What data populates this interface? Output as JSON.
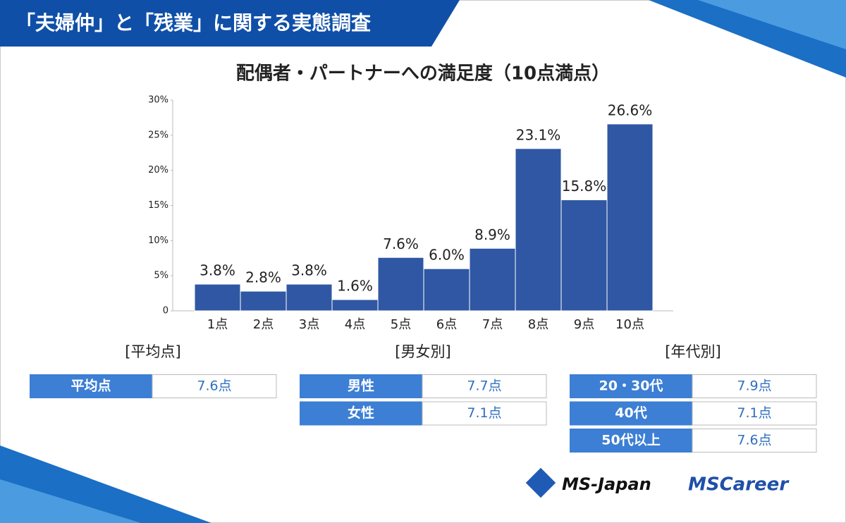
{
  "header": {
    "title": "「夫婦仲」と「残業」に関する実態調査"
  },
  "chart_data": {
    "type": "bar",
    "title": "配偶者・パートナーへの満足度（10点満点）",
    "categories": [
      "1点",
      "2点",
      "3点",
      "4点",
      "5点",
      "6点",
      "7点",
      "8点",
      "9点",
      "10点"
    ],
    "values": [
      3.8,
      2.8,
      3.8,
      1.6,
      7.6,
      6.0,
      8.9,
      23.1,
      15.8,
      26.6
    ],
    "value_labels": [
      "3.8%",
      "2.8%",
      "3.8%",
      "1.6%",
      "7.6%",
      "6.0%",
      "8.9%",
      "23.1%",
      "15.8%",
      "26.6%"
    ],
    "color": "#2f57a3",
    "ylim": [
      0,
      30
    ],
    "yticks": [
      0,
      {
        "value": 5,
        "label": "5%"
      },
      {
        "value": 10,
        "label": "10%"
      },
      {
        "value": 15,
        "label": "15%"
      },
      {
        "value": 20,
        "label": "20%"
      },
      {
        "value": 25,
        "label": "25%"
      },
      {
        "value": 30,
        "label": "30%"
      }
    ]
  },
  "tables": [
    {
      "heading": "[平均点]",
      "rows": [
        [
          "平均点",
          "7.6点"
        ]
      ]
    },
    {
      "heading": "[男女別]",
      "rows": [
        [
          "男性",
          "7.7点"
        ],
        [
          "女性",
          "7.1点"
        ]
      ]
    },
    {
      "heading": "[年代別]",
      "rows": [
        [
          "20・30代",
          "7.9点"
        ],
        [
          "40代",
          "7.1点"
        ],
        [
          "50代以上",
          "7.6点"
        ]
      ]
    }
  ],
  "logos": [
    "MS-Japan",
    "MSCareer"
  ]
}
